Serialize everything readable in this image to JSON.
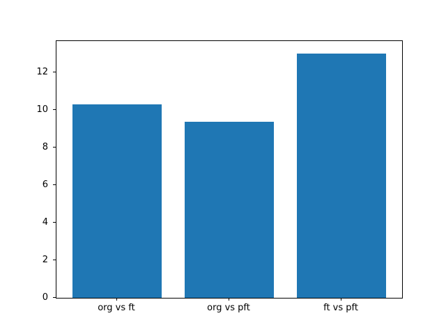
{
  "figure": {
    "background_color": "#ffffff",
    "spine_color": "#000000",
    "tick_text_color": "#000000"
  },
  "chart_data": {
    "type": "bar",
    "title": "",
    "xlabel": "",
    "ylabel": "",
    "categories": [
      "org vs ft",
      "org vs pft",
      "ft vs pft"
    ],
    "values": [
      10.27,
      9.35,
      13.0
    ],
    "bar_color": "#1f77b4",
    "bar_width": 0.8,
    "yticks": [
      0,
      2,
      4,
      6,
      8,
      10,
      12
    ],
    "ylim": [
      0,
      13.65
    ],
    "xlim": [
      -0.54,
      2.54
    ],
    "grid": false,
    "legend": false
  }
}
